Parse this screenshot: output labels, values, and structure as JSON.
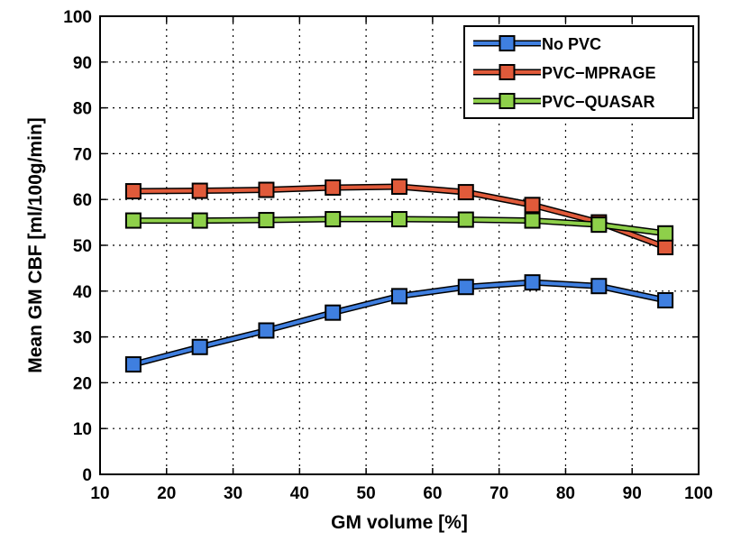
{
  "chart_data": {
    "type": "line",
    "title": "",
    "xlabel": "GM volume [%]",
    "ylabel": "Mean GM CBF [ml/100g/min]",
    "xlim": [
      10,
      100
    ],
    "ylim": [
      0,
      100
    ],
    "xticks": [
      10,
      20,
      30,
      40,
      50,
      60,
      70,
      80,
      90,
      100
    ],
    "yticks": [
      0,
      10,
      20,
      30,
      40,
      50,
      60,
      70,
      80,
      90,
      100
    ],
    "grid": true,
    "legend_position": "top-right",
    "x": [
      15,
      25,
      35,
      45,
      55,
      65,
      75,
      85,
      95
    ],
    "series": [
      {
        "name": "No PVC",
        "color": "#3f7fe0",
        "values": [
          24.0,
          27.8,
          31.4,
          35.3,
          38.9,
          40.9,
          41.9,
          41.1,
          38.0
        ]
      },
      {
        "name": "PVC−MPRAGE",
        "color": "#e05a3a",
        "values": [
          61.8,
          61.9,
          62.1,
          62.6,
          62.8,
          61.6,
          58.8,
          55.0,
          49.6
        ]
      },
      {
        "name": "PVC−QUASAR",
        "color": "#8ed04a",
        "values": [
          55.4,
          55.4,
          55.5,
          55.7,
          55.7,
          55.6,
          55.4,
          54.5,
          52.6
        ]
      }
    ]
  }
}
